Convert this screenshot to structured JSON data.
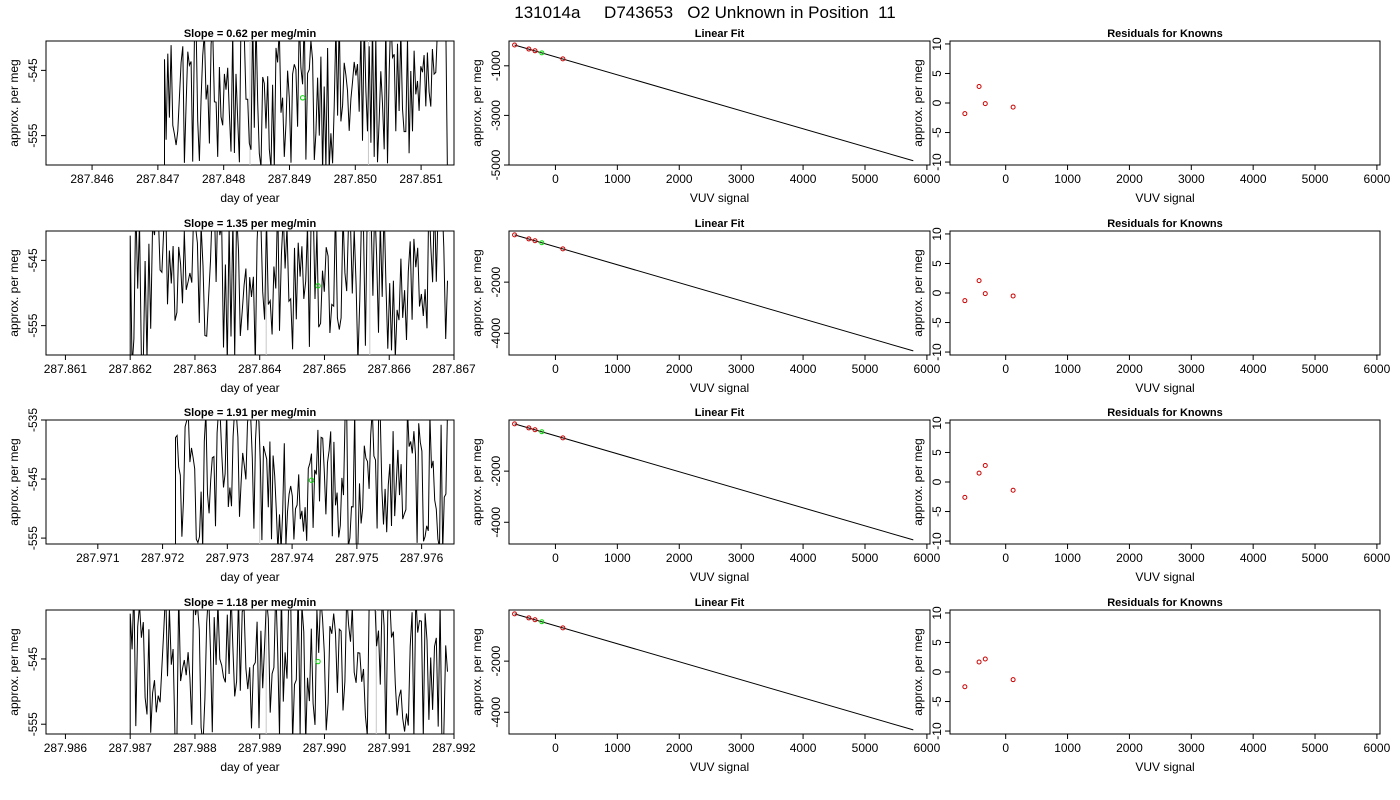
{
  "page_title": "131014a     D743653   O2 Unknown in Position  11",
  "colors": {
    "trace": "#000000",
    "unknown_point": "#00dd00",
    "known_point": "#cc0000",
    "vline": "#c8c8c8",
    "axis": "#000000"
  },
  "rows": [
    {
      "time_panel": {
        "title": "Slope =  0.62  per meg/min",
        "xlabel": "day of year",
        "ylabel": "approx. per meg",
        "xlim": [
          287.8453,
          287.8515
        ],
        "ylim": [
          -559.5,
          -540.5
        ],
        "xticks": [
          "287.846",
          "287.847",
          "287.848",
          "287.849",
          "287.850",
          "287.851"
        ],
        "xtick_values": [
          287.846,
          287.847,
          287.848,
          287.849,
          287.85,
          287.851
        ],
        "yticks": [
          "-545",
          "-555"
        ],
        "ytick_values": [
          -545,
          -555
        ],
        "vlines": [
          287.8484,
          287.8502
        ],
        "trace_start": 287.8471,
        "trace_end": 287.8514,
        "trace_center": -548.5,
        "trace_amp": 9,
        "unknown_point": [
          287.8492,
          -549.2
        ]
      },
      "fit_panel": {
        "title": "Linear Fit",
        "xlabel": "VUV signal",
        "ylabel": "approx. per meg",
        "xlim": [
          -750,
          6050
        ],
        "ylim": [
          -5000,
          0
        ],
        "xticks": [
          "0",
          "1000",
          "2000",
          "3000",
          "4000",
          "5000",
          "6000"
        ],
        "xtick_values": [
          0,
          1000,
          2000,
          3000,
          4000,
          5000,
          6000
        ],
        "yticks": [
          "-1000",
          "-3000",
          "-5000"
        ],
        "ytick_values": [
          -1000,
          -3000,
          -5000
        ],
        "line": [
          [
            -660,
            -160
          ],
          [
            5780,
            -4830
          ]
        ],
        "knowns": [
          [
            -660,
            -160
          ],
          [
            -430,
            -325
          ],
          [
            -330,
            -395
          ],
          [
            120,
            -720
          ]
        ],
        "unknown": [
          [
            -220,
            -480
          ]
        ]
      },
      "resid_panel": {
        "title": "Residuals for Knowns",
        "xlabel": "VUV signal",
        "ylabel": "approx. per meg",
        "xlim": [
          -900,
          6050
        ],
        "ylim": [
          -10.5,
          10.5
        ],
        "xticks": [
          "0",
          "1000",
          "2000",
          "3000",
          "4000",
          "5000",
          "6000"
        ],
        "xtick_values": [
          0,
          1000,
          2000,
          3000,
          4000,
          5000,
          6000
        ],
        "yticks": [
          "10",
          "5",
          "0",
          "-5",
          "-10"
        ],
        "ytick_values": [
          10,
          5,
          0,
          -5,
          -10
        ],
        "points": [
          [
            -660,
            -1.8
          ],
          [
            -430,
            2.8
          ],
          [
            -330,
            -0.1
          ],
          [
            120,
            -0.7
          ]
        ]
      }
    },
    {
      "time_panel": {
        "title": "Slope =  1.35  per meg/min",
        "xlabel": "day of year",
        "ylabel": "approx. per meg",
        "xlim": [
          287.8607,
          287.867
        ],
        "ylim": [
          -559.5,
          -540.5
        ],
        "xticks": [
          "287.861",
          "287.862",
          "287.863",
          "287.864",
          "287.865",
          "287.866",
          "287.867"
        ],
        "xtick_values": [
          287.861,
          287.862,
          287.863,
          287.864,
          287.865,
          287.866,
          287.867
        ],
        "yticks": [
          "-545",
          "-555"
        ],
        "ytick_values": [
          -545,
          -555
        ],
        "vlines": [
          287.8641,
          287.8657
        ],
        "trace_start": 287.862,
        "trace_end": 287.8669,
        "trace_center": -548,
        "trace_amp": 10,
        "unknown_point": [
          287.8649,
          -548.9
        ]
      },
      "fit_panel": {
        "title": "Linear Fit",
        "xlabel": "VUV signal",
        "ylabel": "approx. per meg",
        "xlim": [
          -750,
          6050
        ],
        "ylim": [
          -4850,
          0
        ],
        "xticks": [
          "0",
          "1000",
          "2000",
          "3000",
          "4000",
          "5000",
          "6000"
        ],
        "xtick_values": [
          0,
          1000,
          2000,
          3000,
          4000,
          5000,
          6000
        ],
        "yticks": [
          "-2000",
          "-4000"
        ],
        "ytick_values": [
          -2000,
          -4000
        ],
        "line": [
          [
            -660,
            -150
          ],
          [
            5780,
            -4690
          ]
        ],
        "knowns": [
          [
            -660,
            -150
          ],
          [
            -430,
            -310
          ],
          [
            -330,
            -380
          ],
          [
            120,
            -700
          ]
        ],
        "unknown": [
          [
            -220,
            -460
          ]
        ]
      },
      "resid_panel": {
        "title": "Residuals for Knowns",
        "xlabel": "VUV signal",
        "ylabel": "approx. per meg",
        "xlim": [
          -900,
          6050
        ],
        "ylim": [
          -10.5,
          10.5
        ],
        "xticks": [
          "0",
          "1000",
          "2000",
          "3000",
          "4000",
          "5000",
          "6000"
        ],
        "xtick_values": [
          0,
          1000,
          2000,
          3000,
          4000,
          5000,
          6000
        ],
        "yticks": [
          "10",
          "5",
          "0",
          "-5",
          "-10"
        ],
        "ytick_values": [
          10,
          5,
          0,
          -5,
          -10
        ],
        "points": [
          [
            -660,
            -1.3
          ],
          [
            -430,
            2.1
          ],
          [
            -330,
            -0.1
          ],
          [
            120,
            -0.5
          ]
        ]
      }
    },
    {
      "time_panel": {
        "title": "Slope =  1.91  per meg/min",
        "xlabel": "day of year",
        "ylabel": "approx. per meg",
        "xlim": [
          287.9702,
          287.9765
        ],
        "ylim": [
          -556,
          -535
        ],
        "xticks": [
          "287.971",
          "287.972",
          "287.973",
          "287.974",
          "287.975",
          "287.976"
        ],
        "xtick_values": [
          287.971,
          287.972,
          287.973,
          287.974,
          287.975,
          287.976
        ],
        "yticks": [
          "-535",
          "-545",
          "-555"
        ],
        "ytick_values": [
          -535,
          -545,
          -555
        ],
        "vlines": [
          287.9735
        ],
        "trace_start": 287.9722,
        "trace_end": 287.9764,
        "trace_center": -545,
        "trace_amp": 9,
        "unknown_point": [
          287.9743,
          -545.2
        ]
      },
      "fit_panel": {
        "title": "Linear Fit",
        "xlabel": "VUV signal",
        "ylabel": "approx. per meg",
        "xlim": [
          -750,
          6050
        ],
        "ylim": [
          -4850,
          0
        ],
        "xticks": [
          "0",
          "1000",
          "2000",
          "3000",
          "4000",
          "5000",
          "6000"
        ],
        "xtick_values": [
          0,
          1000,
          2000,
          3000,
          4000,
          5000,
          6000
        ],
        "yticks": [
          "-2000",
          "-4000"
        ],
        "ytick_values": [
          -2000,
          -4000
        ],
        "line": [
          [
            -660,
            -150
          ],
          [
            5780,
            -4690
          ]
        ],
        "knowns": [
          [
            -660,
            -150
          ],
          [
            -430,
            -310
          ],
          [
            -330,
            -380
          ],
          [
            120,
            -700
          ]
        ],
        "unknown": [
          [
            -220,
            -460
          ]
        ]
      },
      "resid_panel": {
        "title": "Residuals for Knowns",
        "xlabel": "VUV signal",
        "ylabel": "approx. per meg",
        "xlim": [
          -900,
          6050
        ],
        "ylim": [
          -10.5,
          10.5
        ],
        "xticks": [
          "0",
          "1000",
          "2000",
          "3000",
          "4000",
          "5000",
          "6000"
        ],
        "xtick_values": [
          0,
          1000,
          2000,
          3000,
          4000,
          5000,
          6000
        ],
        "yticks": [
          "10",
          "5",
          "0",
          "-5",
          "-10"
        ],
        "ytick_values": [
          10,
          5,
          0,
          -5,
          -10
        ],
        "points": [
          [
            -660,
            -2.6
          ],
          [
            -430,
            1.5
          ],
          [
            -330,
            2.8
          ],
          [
            120,
            -1.4
          ]
        ]
      }
    },
    {
      "time_panel": {
        "title": "Slope =  1.18  per meg/min",
        "xlabel": "day of year",
        "ylabel": "approx. per meg",
        "xlim": [
          287.9857,
          287.992
        ],
        "ylim": [
          -556.5,
          -537.5
        ],
        "xticks": [
          "287.986",
          "287.987",
          "287.988",
          "287.989",
          "287.990",
          "287.991",
          "287.992"
        ],
        "xtick_values": [
          287.986,
          287.987,
          287.988,
          287.989,
          287.99,
          287.991,
          287.992
        ],
        "yticks": [
          "-545",
          "-555"
        ],
        "ytick_values": [
          -545,
          -555
        ],
        "vlines": [
          287.9891,
          287.9908
        ],
        "trace_start": 287.987,
        "trace_end": 287.9919,
        "trace_center": -546,
        "trace_amp": 9,
        "unknown_point": [
          287.9899,
          -545.4
        ]
      },
      "fit_panel": {
        "title": "Linear Fit",
        "xlabel": "VUV signal",
        "ylabel": "approx. per meg",
        "xlim": [
          -750,
          6050
        ],
        "ylim": [
          -4850,
          0
        ],
        "xticks": [
          "0",
          "1000",
          "2000",
          "3000",
          "4000",
          "5000",
          "6000"
        ],
        "xtick_values": [
          0,
          1000,
          2000,
          3000,
          4000,
          5000,
          6000
        ],
        "yticks": [
          "-2000",
          "-4000"
        ],
        "ytick_values": [
          -2000,
          -4000
        ],
        "line": [
          [
            -660,
            -150
          ],
          [
            5780,
            -4690
          ]
        ],
        "knowns": [
          [
            -660,
            -150
          ],
          [
            -430,
            -310
          ],
          [
            -330,
            -380
          ],
          [
            120,
            -700
          ]
        ],
        "unknown": [
          [
            -220,
            -460
          ]
        ]
      },
      "resid_panel": {
        "title": "Residuals for Knowns",
        "xlabel": "VUV signal",
        "ylabel": "approx. per meg",
        "xlim": [
          -900,
          6050
        ],
        "ylim": [
          -10.5,
          10.5
        ],
        "xticks": [
          "0",
          "1000",
          "2000",
          "3000",
          "4000",
          "5000",
          "6000"
        ],
        "xtick_values": [
          0,
          1000,
          2000,
          3000,
          4000,
          5000,
          6000
        ],
        "yticks": [
          "10",
          "5",
          "0",
          "-5",
          "-10"
        ],
        "ytick_values": [
          10,
          5,
          0,
          -5,
          -10
        ],
        "points": [
          [
            -660,
            -2.5
          ],
          [
            -430,
            1.7
          ],
          [
            -330,
            2.2
          ],
          [
            120,
            -1.3
          ]
        ]
      }
    }
  ],
  "chart_data": [
    {
      "type": "line",
      "title": "Slope =  0.62  per meg/min",
      "xlabel": "day of year",
      "ylabel": "approx. per meg",
      "xlim": [
        287.8453,
        287.8515
      ],
      "ylim": [
        -559.5,
        -540.5
      ],
      "series": [
        {
          "name": "",
          "x": [
            287.8492
          ],
          "y": [
            -549.2
          ]
        }
      ]
    },
    {
      "type": "scatter",
      "title": "Linear Fit",
      "xlabel": "VUV signal",
      "ylabel": "approx. per meg",
      "xlim": [
        -750,
        6050
      ],
      "ylim": [
        -5000,
        0
      ],
      "series": [
        {
          "name": "",
          "x": [
            -660,
            -430,
            -330,
            120
          ],
          "y": [
            -160,
            -325,
            -395,
            -720
          ]
        },
        {
          "name": "",
          "x": [
            -220
          ],
          "y": [
            -480
          ]
        }
      ]
    },
    {
      "type": "scatter",
      "title": "Residuals for Knowns",
      "xlabel": "VUV signal",
      "ylabel": "approx. per meg",
      "xlim": [
        -900,
        6050
      ],
      "ylim": [
        -10.5,
        10.5
      ],
      "series": [
        {
          "name": "",
          "x": [
            -660,
            -430,
            -330,
            120
          ],
          "y": [
            -1.8,
            2.8,
            -0.1,
            -0.7
          ]
        }
      ]
    },
    {
      "type": "line",
      "title": "Slope =  1.35  per meg/min",
      "xlabel": "day of year",
      "ylabel": "approx. per meg",
      "xlim": [
        287.8607,
        287.867
      ],
      "ylim": [
        -559.5,
        -540.5
      ],
      "series": [
        {
          "name": "",
          "x": [
            287.8649
          ],
          "y": [
            -548.9
          ]
        }
      ]
    },
    {
      "type": "scatter",
      "title": "Linear Fit",
      "xlabel": "VUV signal",
      "ylabel": "approx. per meg",
      "xlim": [
        -750,
        6050
      ],
      "ylim": [
        -4850,
        0
      ],
      "series": [
        {
          "name": "",
          "x": [
            -660,
            -430,
            -330,
            120
          ],
          "y": [
            -150,
            -310,
            -380,
            -700
          ]
        },
        {
          "name": "",
          "x": [
            -220
          ],
          "y": [
            -460
          ]
        }
      ]
    },
    {
      "type": "scatter",
      "title": "Residuals for Knowns",
      "xlabel": "VUV signal",
      "ylabel": "approx. per meg",
      "xlim": [
        -900,
        6050
      ],
      "ylim": [
        -10.5,
        10.5
      ],
      "series": [
        {
          "name": "",
          "x": [
            -660,
            -430,
            -330,
            120
          ],
          "y": [
            -1.3,
            2.1,
            -0.1,
            -0.5
          ]
        }
      ]
    },
    {
      "type": "line",
      "title": "Slope =  1.91  per meg/min",
      "xlabel": "day of year",
      "ylabel": "approx. per meg",
      "xlim": [
        287.9702,
        287.9765
      ],
      "ylim": [
        -556,
        -535
      ],
      "series": [
        {
          "name": "",
          "x": [
            287.9743
          ],
          "y": [
            -545.2
          ]
        }
      ]
    },
    {
      "type": "scatter",
      "title": "Linear Fit",
      "xlabel": "VUV signal",
      "ylabel": "approx. per meg",
      "xlim": [
        -750,
        6050
      ],
      "ylim": [
        -4850,
        0
      ],
      "series": [
        {
          "name": "",
          "x": [
            -660,
            -430,
            -330,
            120
          ],
          "y": [
            -150,
            -310,
            -380,
            -700
          ]
        },
        {
          "name": "",
          "x": [
            -220
          ],
          "y": [
            -460
          ]
        }
      ]
    },
    {
      "type": "scatter",
      "title": "Residuals for Knowns",
      "xlabel": "VUV signal",
      "ylabel": "approx. per meg",
      "xlim": [
        -900,
        6050
      ],
      "ylim": [
        -10.5,
        10.5
      ],
      "series": [
        {
          "name": "",
          "x": [
            -660,
            -430,
            -330,
            120
          ],
          "y": [
            -2.6,
            1.5,
            2.8,
            -1.4
          ]
        }
      ]
    },
    {
      "type": "line",
      "title": "Slope =  1.18  per meg/min",
      "xlabel": "day of year",
      "ylabel": "approx. per meg",
      "xlim": [
        287.9857,
        287.992
      ],
      "ylim": [
        -556.5,
        -537.5
      ],
      "series": [
        {
          "name": "",
          "x": [
            287.9899
          ],
          "y": [
            -545.4
          ]
        }
      ]
    },
    {
      "type": "scatter",
      "title": "Linear Fit",
      "xlabel": "VUV signal",
      "ylabel": "approx. per meg",
      "xlim": [
        -750,
        6050
      ],
      "ylim": [
        -4850,
        0
      ],
      "series": [
        {
          "name": "",
          "x": [
            -660,
            -430,
            -330,
            120
          ],
          "y": [
            -150,
            -310,
            -380,
            -700
          ]
        },
        {
          "name": "",
          "x": [
            -220
          ],
          "y": [
            -460
          ]
        }
      ]
    },
    {
      "type": "scatter",
      "title": "Residuals for Knowns",
      "xlabel": "VUV signal",
      "ylabel": "approx. per meg",
      "xlim": [
        -900,
        6050
      ],
      "ylim": [
        -10.5,
        10.5
      ],
      "series": [
        {
          "name": "",
          "x": [
            -660,
            -430,
            -330,
            120
          ],
          "y": [
            -2.5,
            1.7,
            2.2,
            -1.3
          ]
        }
      ]
    }
  ]
}
